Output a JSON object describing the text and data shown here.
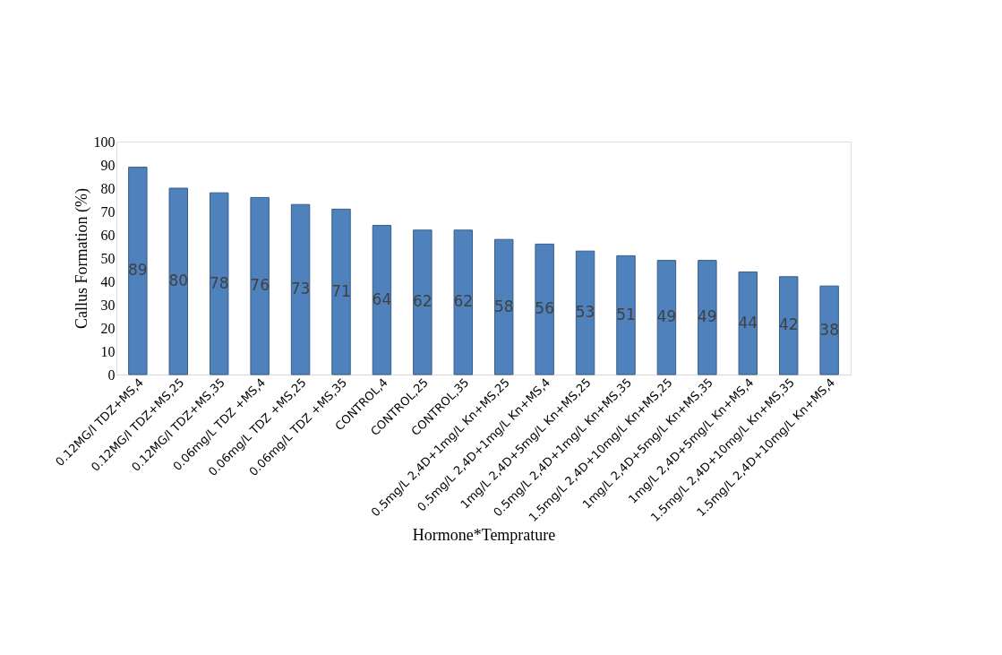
{
  "chart_data": {
    "type": "bar",
    "xlabel": "Hormone*Temprature",
    "ylabel": "Callus Formation (%)",
    "categories": [
      "0.12MG/l TDZ+MS,4",
      "0.12MG/l TDZ+MS,25",
      "0.12MG/l TDZ+MS,35",
      "0.06mg/L TDZ +MS,4",
      "0.06mg/L TDZ +MS,25",
      "0.06mg/L TDZ +MS,35",
      "CONTROL,4",
      "CONTROL,25",
      "CONTROL,35",
      "0.5mg/L 2,4D+1mg/L Kn+MS,25",
      "0.5mg/L 2,4D+1mg/L Kn+MS,4",
      "1mg/L 2,4D+5mg/L Kn+MS,25",
      "0.5mg/L 2,4D+1mg/L Kn+MS,35",
      "1.5mg/L 2,4D+10mg/L Kn+MS,25",
      "1mg/L 2,4D+5mg/L Kn+MS,35",
      "1mg/L 2,4D+5mg/L Kn+MS,4",
      "1.5mg/L 2,4D+10mg/L Kn+MS,35",
      "1.5mg/L 2,4D+10mg/L Kn+MS,4"
    ],
    "values": [
      89,
      80,
      78,
      76,
      73,
      71,
      64,
      62,
      62,
      58,
      56,
      53,
      51,
      49,
      49,
      44,
      42,
      38
    ],
    "color": "#4f81bd",
    "data_labels": true,
    "ylim": [
      0,
      100
    ],
    "yticks": [
      0,
      10,
      20,
      30,
      40,
      50,
      60,
      70,
      80,
      90,
      100
    ],
    "grid": false
  }
}
